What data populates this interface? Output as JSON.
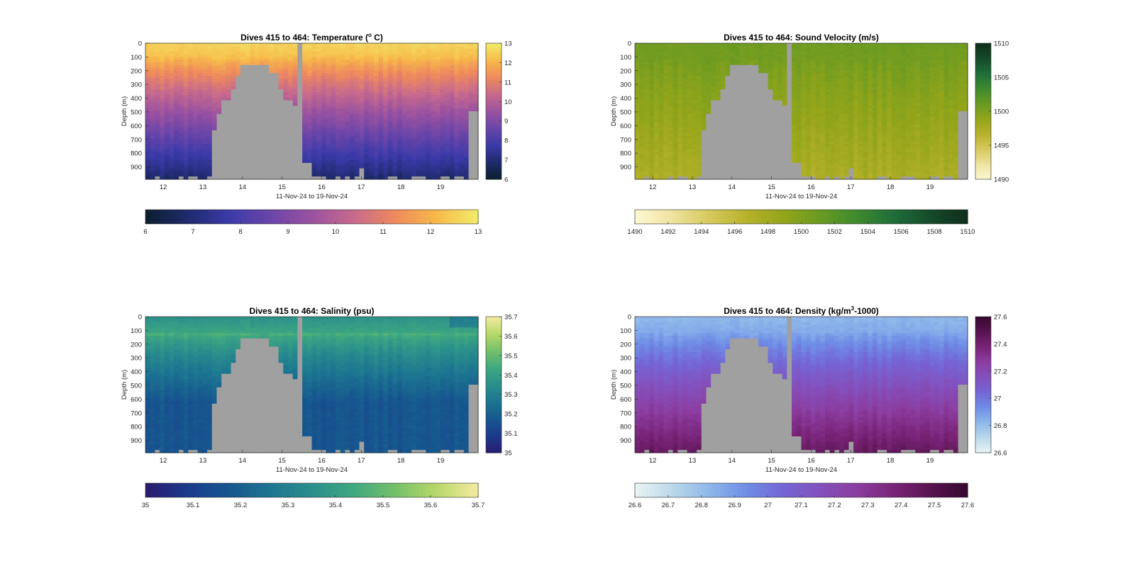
{
  "chart_data": [
    {
      "type": "heatmap",
      "title": "Dives 415 to 464: Temperature (° C)",
      "title_main": "Dives 415 to 464: Temperature (",
      "title_sup": "o",
      "title_tail": " C)",
      "xlabel": "11-Nov-24 to 19-Nov-24",
      "ylabel": "Depth (m)",
      "x_ticks": [
        "12",
        "13",
        "14",
        "15",
        "16",
        "17",
        "18",
        "19"
      ],
      "xlim": [
        11.55,
        19.95
      ],
      "y_ticks": [
        "0",
        "100",
        "200",
        "300",
        "400",
        "500",
        "600",
        "700",
        "800",
        "900"
      ],
      "ylim": [
        0,
        990
      ],
      "colorbar": {
        "min": 6,
        "max": 13,
        "ticks": [
          "6",
          "7",
          "8",
          "9",
          "10",
          "11",
          "12",
          "13"
        ]
      },
      "colormap": [
        "#0b1f2e",
        "#1f2a6b",
        "#3a3aa8",
        "#6a45a8",
        "#9a52a0",
        "#c76a8c",
        "#ee8a5e",
        "#f7b94a",
        "#f1ec6a"
      ],
      "profile": {
        "surface": 12.6,
        "mixed_layer_m": 100,
        "deep": 6.9
      },
      "no_data_color": "#a0a0a0"
    },
    {
      "type": "heatmap",
      "title": "Dives 415 to 464: Sound Velocity (m/s)",
      "title_main": "Dives 415 to 464: Sound Velocity (m/s)",
      "title_sup": "",
      "title_tail": "",
      "xlabel": "11-Nov-24 to 19-Nov-24",
      "ylabel": "Depth (m)",
      "x_ticks": [
        "12",
        "13",
        "14",
        "15",
        "16",
        "17",
        "18",
        "19"
      ],
      "xlim": [
        11.55,
        19.95
      ],
      "y_ticks": [
        "0",
        "100",
        "200",
        "300",
        "400",
        "500",
        "600",
        "700",
        "800",
        "900"
      ],
      "ylim": [
        0,
        990
      ],
      "colorbar": {
        "min": 1490,
        "max": 1510,
        "ticks": [
          "1490",
          "1492",
          "1494",
          "1496",
          "1498",
          "1500",
          "1502",
          "1504",
          "1506",
          "1508",
          "1510"
        ],
        "side_ticks": [
          "1490",
          "1495",
          "1500",
          "1505",
          "1510"
        ]
      },
      "colormap": [
        "#fdf8d3",
        "#efe3a0",
        "#d6c95e",
        "#b8b22c",
        "#93a51a",
        "#6a9a22",
        "#3f8a2e",
        "#1f6e3a",
        "#154a2a",
        "#0f2e1c"
      ],
      "profile": {
        "surface": 1500.8,
        "mixed_layer_m": 120,
        "deep": 1497.4
      },
      "no_data_color": "#a0a0a0"
    },
    {
      "type": "heatmap",
      "title": "Dives 415 to 464: Salinity (psu)",
      "title_main": "Dives 415 to 464: Salinity (psu)",
      "title_sup": "",
      "title_tail": "",
      "xlabel": "11-Nov-24 to 19-Nov-24",
      "ylabel": "Depth (m)",
      "x_ticks": [
        "12",
        "13",
        "14",
        "15",
        "16",
        "17",
        "18",
        "19"
      ],
      "xlim": [
        11.55,
        19.95
      ],
      "y_ticks": [
        "0",
        "100",
        "200",
        "300",
        "400",
        "500",
        "600",
        "700",
        "800",
        "900"
      ],
      "ylim": [
        0,
        990
      ],
      "colorbar": {
        "min": 35,
        "max": 35.7,
        "ticks": [
          "35",
          "35.1",
          "35.2",
          "35.3",
          "35.4",
          "35.5",
          "35.6",
          "35.7"
        ]
      },
      "colormap": [
        "#2a1b6e",
        "#1b3a8c",
        "#17578f",
        "#1c7590",
        "#2a8f8c",
        "#3fa880",
        "#74c06a",
        "#b8d86a",
        "#f5eba0"
      ],
      "profile": {
        "surface": 35.36,
        "subsurface_max": 35.47,
        "mixed_layer_m": 120,
        "deep": 35.17
      },
      "no_data_color": "#a0a0a0"
    },
    {
      "type": "heatmap",
      "title": "Dives 415 to 464: Density (kg/m³-1000)",
      "title_main": "Dives 415 to 464: Density (kg/m",
      "title_sup": "3",
      "title_tail": "-1000)",
      "xlabel": "11-Nov-24 to 19-Nov-24",
      "ylabel": "Depth (m)",
      "x_ticks": [
        "12",
        "13",
        "14",
        "15",
        "16",
        "17",
        "18",
        "19"
      ],
      "xlim": [
        11.55,
        19.95
      ],
      "y_ticks": [
        "0",
        "100",
        "200",
        "300",
        "400",
        "500",
        "600",
        "700",
        "800",
        "900"
      ],
      "ylim": [
        0,
        990
      ],
      "colorbar": {
        "min": 26.6,
        "max": 27.6,
        "ticks": [
          "26.6",
          "26.7",
          "26.8",
          "26.9",
          "27",
          "27.1",
          "27.2",
          "27.3",
          "27.4",
          "27.5",
          "27.6"
        ],
        "side_ticks": [
          "26.6",
          "26.8",
          "27",
          "27.2",
          "27.4",
          "27.6"
        ]
      },
      "colormap": [
        "#e9f4f4",
        "#bcd9ea",
        "#8fb8ea",
        "#6f8ee6",
        "#7466d4",
        "#8351bd",
        "#8b3ea0",
        "#7a2478",
        "#581450",
        "#36082e"
      ],
      "profile": {
        "surface": 26.82,
        "mixed_layer_m": 110,
        "deep": 27.45
      },
      "no_data_color": "#a0a0a0"
    }
  ]
}
